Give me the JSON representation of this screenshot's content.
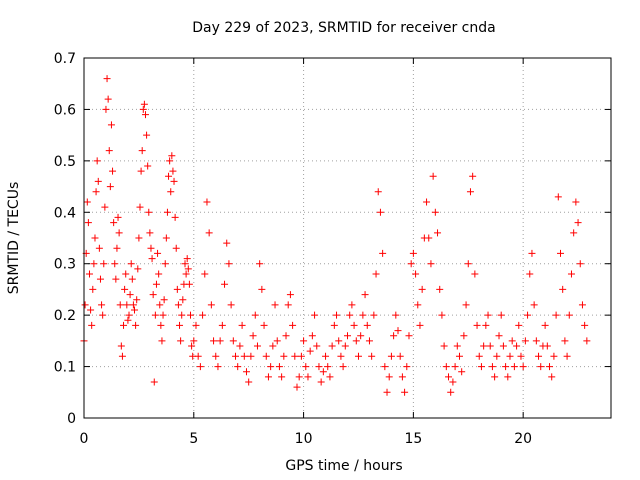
{
  "chart_data": {
    "type": "scatter",
    "title": "Day 229 of 2023, SRMTID for receiver cnda",
    "xlabel": "GPS time / hours",
    "ylabel": "SRMTID / TECUs",
    "xlim": [
      0,
      24
    ],
    "ylim": [
      0,
      0.7
    ],
    "xticks": [
      0,
      5,
      10,
      15,
      20
    ],
    "xtick_labels": [
      "0",
      "5",
      "10",
      "15",
      "20"
    ],
    "yticks": [
      0,
      0.1,
      0.2,
      0.3,
      0.4,
      0.5,
      0.6,
      0.7
    ],
    "ytick_labels": [
      "0",
      "0.1",
      "0.2",
      "0.3",
      "0.4",
      "0.5",
      "0.6",
      "0.7"
    ],
    "grid": true,
    "marker": "+",
    "color": "#ff0000",
    "series": [
      {
        "name": "SRMTID",
        "points": [
          [
            0.0,
            0.15
          ],
          [
            0.05,
            0.22
          ],
          [
            0.1,
            0.32
          ],
          [
            0.15,
            0.42
          ],
          [
            0.2,
            0.38
          ],
          [
            0.25,
            0.28
          ],
          [
            0.3,
            0.21
          ],
          [
            0.35,
            0.18
          ],
          [
            0.4,
            0.25
          ],
          [
            0.45,
            0.3
          ],
          [
            0.5,
            0.35
          ],
          [
            0.55,
            0.44
          ],
          [
            0.6,
            0.5
          ],
          [
            0.65,
            0.46
          ],
          [
            0.7,
            0.33
          ],
          [
            0.75,
            0.27
          ],
          [
            0.8,
            0.22
          ],
          [
            0.85,
            0.2
          ],
          [
            0.9,
            0.3
          ],
          [
            0.95,
            0.41
          ],
          [
            1.0,
            0.6
          ],
          [
            1.05,
            0.66
          ],
          [
            1.1,
            0.62
          ],
          [
            1.15,
            0.52
          ],
          [
            1.2,
            0.45
          ],
          [
            1.25,
            0.57
          ],
          [
            1.3,
            0.48
          ],
          [
            1.35,
            0.38
          ],
          [
            1.4,
            0.3
          ],
          [
            1.45,
            0.27
          ],
          [
            1.5,
            0.33
          ],
          [
            1.55,
            0.39
          ],
          [
            1.6,
            0.36
          ],
          [
            1.65,
            0.22
          ],
          [
            1.7,
            0.14
          ],
          [
            1.75,
            0.12
          ],
          [
            1.8,
            0.18
          ],
          [
            1.85,
            0.25
          ],
          [
            1.9,
            0.28
          ],
          [
            1.95,
            0.22
          ],
          [
            2.0,
            0.19
          ],
          [
            2.05,
            0.2
          ],
          [
            2.1,
            0.24
          ],
          [
            2.15,
            0.3
          ],
          [
            2.2,
            0.27
          ],
          [
            2.25,
            0.22
          ],
          [
            2.3,
            0.21
          ],
          [
            2.35,
            0.18
          ],
          [
            2.4,
            0.23
          ],
          [
            2.45,
            0.29
          ],
          [
            2.5,
            0.35
          ],
          [
            2.55,
            0.41
          ],
          [
            2.6,
            0.48
          ],
          [
            2.65,
            0.52
          ],
          [
            2.7,
            0.6
          ],
          [
            2.75,
            0.61
          ],
          [
            2.8,
            0.59
          ],
          [
            2.85,
            0.55
          ],
          [
            2.9,
            0.49
          ],
          [
            2.95,
            0.4
          ],
          [
            3.0,
            0.36
          ],
          [
            3.05,
            0.33
          ],
          [
            3.1,
            0.31
          ],
          [
            3.15,
            0.24
          ],
          [
            3.2,
            0.07
          ],
          [
            3.25,
            0.2
          ],
          [
            3.3,
            0.26
          ],
          [
            3.35,
            0.32
          ],
          [
            3.4,
            0.28
          ],
          [
            3.45,
            0.22
          ],
          [
            3.5,
            0.18
          ],
          [
            3.55,
            0.15
          ],
          [
            3.6,
            0.2
          ],
          [
            3.65,
            0.23
          ],
          [
            3.7,
            0.3
          ],
          [
            3.75,
            0.35
          ],
          [
            3.8,
            0.4
          ],
          [
            3.85,
            0.47
          ],
          [
            3.9,
            0.5
          ],
          [
            3.95,
            0.44
          ],
          [
            4.0,
            0.51
          ],
          [
            4.05,
            0.48
          ],
          [
            4.1,
            0.46
          ],
          [
            4.15,
            0.39
          ],
          [
            4.2,
            0.33
          ],
          [
            4.25,
            0.25
          ],
          [
            4.3,
            0.22
          ],
          [
            4.35,
            0.18
          ],
          [
            4.4,
            0.15
          ],
          [
            4.45,
            0.2
          ],
          [
            4.5,
            0.23
          ],
          [
            4.55,
            0.26
          ],
          [
            4.6,
            0.3
          ],
          [
            4.65,
            0.28
          ],
          [
            4.7,
            0.31
          ],
          [
            4.75,
            0.29
          ],
          [
            4.8,
            0.26
          ],
          [
            4.85,
            0.2
          ],
          [
            4.9,
            0.14
          ],
          [
            4.95,
            0.12
          ],
          [
            5.0,
            0.15
          ],
          [
            5.1,
            0.18
          ],
          [
            5.2,
            0.12
          ],
          [
            5.3,
            0.1
          ],
          [
            5.4,
            0.2
          ],
          [
            5.5,
            0.28
          ],
          [
            5.6,
            0.42
          ],
          [
            5.7,
            0.36
          ],
          [
            5.8,
            0.22
          ],
          [
            5.9,
            0.15
          ],
          [
            6.0,
            0.12
          ],
          [
            6.1,
            0.1
          ],
          [
            6.2,
            0.15
          ],
          [
            6.3,
            0.18
          ],
          [
            6.4,
            0.26
          ],
          [
            6.5,
            0.34
          ],
          [
            6.6,
            0.3
          ],
          [
            6.7,
            0.22
          ],
          [
            6.8,
            0.15
          ],
          [
            6.9,
            0.12
          ],
          [
            7.0,
            0.1
          ],
          [
            7.1,
            0.14
          ],
          [
            7.2,
            0.18
          ],
          [
            7.3,
            0.12
          ],
          [
            7.4,
            0.09
          ],
          [
            7.5,
            0.07
          ],
          [
            7.6,
            0.12
          ],
          [
            7.7,
            0.16
          ],
          [
            7.8,
            0.2
          ],
          [
            7.9,
            0.14
          ],
          [
            8.0,
            0.3
          ],
          [
            8.1,
            0.25
          ],
          [
            8.2,
            0.18
          ],
          [
            8.3,
            0.12
          ],
          [
            8.4,
            0.08
          ],
          [
            8.5,
            0.1
          ],
          [
            8.6,
            0.14
          ],
          [
            8.7,
            0.22
          ],
          [
            8.8,
            0.15
          ],
          [
            8.9,
            0.1
          ],
          [
            9.0,
            0.08
          ],
          [
            9.1,
            0.12
          ],
          [
            9.2,
            0.16
          ],
          [
            9.3,
            0.22
          ],
          [
            9.4,
            0.24
          ],
          [
            9.5,
            0.18
          ],
          [
            9.6,
            0.12
          ],
          [
            9.7,
            0.06
          ],
          [
            9.8,
            0.08
          ],
          [
            9.9,
            0.12
          ],
          [
            10.0,
            0.15
          ],
          [
            10.1,
            0.1
          ],
          [
            10.2,
            0.08
          ],
          [
            10.3,
            0.13
          ],
          [
            10.4,
            0.16
          ],
          [
            10.5,
            0.2
          ],
          [
            10.6,
            0.14
          ],
          [
            10.7,
            0.1
          ],
          [
            10.8,
            0.07
          ],
          [
            10.9,
            0.09
          ],
          [
            11.0,
            0.12
          ],
          [
            11.1,
            0.1
          ],
          [
            11.2,
            0.08
          ],
          [
            11.3,
            0.14
          ],
          [
            11.4,
            0.18
          ],
          [
            11.5,
            0.2
          ],
          [
            11.6,
            0.15
          ],
          [
            11.7,
            0.12
          ],
          [
            11.8,
            0.1
          ],
          [
            11.9,
            0.14
          ],
          [
            12.0,
            0.16
          ],
          [
            12.1,
            0.2
          ],
          [
            12.2,
            0.22
          ],
          [
            12.3,
            0.18
          ],
          [
            12.4,
            0.15
          ],
          [
            12.5,
            0.12
          ],
          [
            12.6,
            0.16
          ],
          [
            12.7,
            0.2
          ],
          [
            12.8,
            0.24
          ],
          [
            12.9,
            0.18
          ],
          [
            13.0,
            0.15
          ],
          [
            13.1,
            0.12
          ],
          [
            13.2,
            0.2
          ],
          [
            13.3,
            0.28
          ],
          [
            13.4,
            0.44
          ],
          [
            13.5,
            0.4
          ],
          [
            13.6,
            0.32
          ],
          [
            13.7,
            0.1
          ],
          [
            13.8,
            0.05
          ],
          [
            13.9,
            0.08
          ],
          [
            14.0,
            0.12
          ],
          [
            14.1,
            0.16
          ],
          [
            14.2,
            0.2
          ],
          [
            14.3,
            0.17
          ],
          [
            14.4,
            0.12
          ],
          [
            14.5,
            0.08
          ],
          [
            14.6,
            0.05
          ],
          [
            14.7,
            0.1
          ],
          [
            14.8,
            0.16
          ],
          [
            14.9,
            0.3
          ],
          [
            15.0,
            0.32
          ],
          [
            15.1,
            0.28
          ],
          [
            15.2,
            0.22
          ],
          [
            15.3,
            0.18
          ],
          [
            15.4,
            0.25
          ],
          [
            15.5,
            0.35
          ],
          [
            15.6,
            0.42
          ],
          [
            15.7,
            0.35
          ],
          [
            15.8,
            0.3
          ],
          [
            15.9,
            0.47
          ],
          [
            16.0,
            0.4
          ],
          [
            16.1,
            0.36
          ],
          [
            16.2,
            0.25
          ],
          [
            16.3,
            0.2
          ],
          [
            16.4,
            0.14
          ],
          [
            16.5,
            0.1
          ],
          [
            16.6,
            0.08
          ],
          [
            16.7,
            0.05
          ],
          [
            16.8,
            0.07
          ],
          [
            16.9,
            0.1
          ],
          [
            17.0,
            0.14
          ],
          [
            17.1,
            0.12
          ],
          [
            17.2,
            0.09
          ],
          [
            17.3,
            0.16
          ],
          [
            17.4,
            0.22
          ],
          [
            17.5,
            0.3
          ],
          [
            17.6,
            0.44
          ],
          [
            17.7,
            0.47
          ],
          [
            17.8,
            0.28
          ],
          [
            17.9,
            0.18
          ],
          [
            18.0,
            0.12
          ],
          [
            18.1,
            0.1
          ],
          [
            18.2,
            0.14
          ],
          [
            18.3,
            0.18
          ],
          [
            18.4,
            0.2
          ],
          [
            18.5,
            0.14
          ],
          [
            18.6,
            0.1
          ],
          [
            18.7,
            0.08
          ],
          [
            18.8,
            0.12
          ],
          [
            18.9,
            0.16
          ],
          [
            19.0,
            0.2
          ],
          [
            19.1,
            0.14
          ],
          [
            19.2,
            0.1
          ],
          [
            19.3,
            0.08
          ],
          [
            19.4,
            0.12
          ],
          [
            19.5,
            0.15
          ],
          [
            19.6,
            0.1
          ],
          [
            19.7,
            0.14
          ],
          [
            19.8,
            0.18
          ],
          [
            19.9,
            0.12
          ],
          [
            20.0,
            0.1
          ],
          [
            20.1,
            0.15
          ],
          [
            20.2,
            0.2
          ],
          [
            20.3,
            0.28
          ],
          [
            20.4,
            0.32
          ],
          [
            20.5,
            0.22
          ],
          [
            20.6,
            0.15
          ],
          [
            20.7,
            0.12
          ],
          [
            20.8,
            0.1
          ],
          [
            20.9,
            0.14
          ],
          [
            21.0,
            0.18
          ],
          [
            21.1,
            0.14
          ],
          [
            21.2,
            0.1
          ],
          [
            21.3,
            0.08
          ],
          [
            21.4,
            0.12
          ],
          [
            21.5,
            0.2
          ],
          [
            21.6,
            0.43
          ],
          [
            21.7,
            0.32
          ],
          [
            21.8,
            0.25
          ],
          [
            21.9,
            0.15
          ],
          [
            22.0,
            0.12
          ],
          [
            22.1,
            0.2
          ],
          [
            22.2,
            0.28
          ],
          [
            22.3,
            0.36
          ],
          [
            22.4,
            0.42
          ],
          [
            22.5,
            0.38
          ],
          [
            22.6,
            0.3
          ],
          [
            22.7,
            0.22
          ],
          [
            22.8,
            0.18
          ],
          [
            22.9,
            0.15
          ]
        ]
      }
    ]
  }
}
